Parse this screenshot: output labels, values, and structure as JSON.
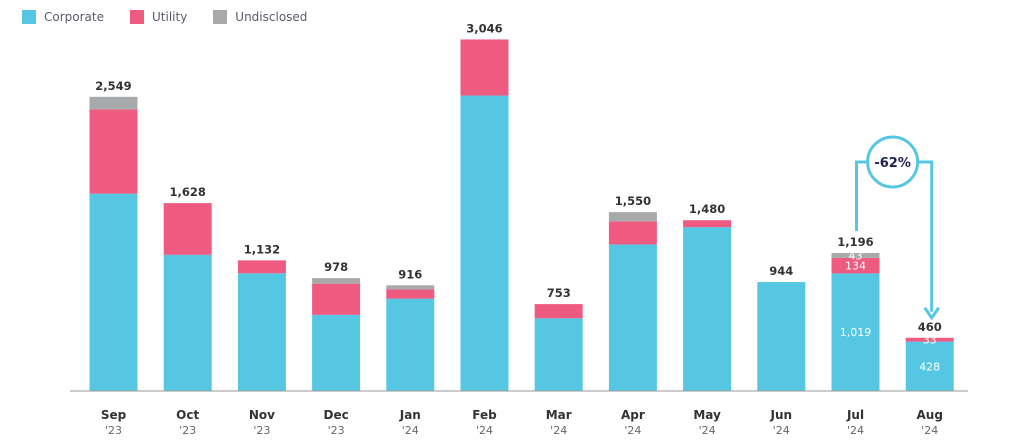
{
  "chart_data": {
    "type": "bar",
    "stacked": true,
    "categories": [
      {
        "month": "Sep",
        "year": "'23"
      },
      {
        "month": "Oct",
        "year": "'23"
      },
      {
        "month": "Nov",
        "year": "'23"
      },
      {
        "month": "Dec",
        "year": "'23"
      },
      {
        "month": "Jan",
        "year": "'24"
      },
      {
        "month": "Feb",
        "year": "'24"
      },
      {
        "month": "Mar",
        "year": "'24"
      },
      {
        "month": "Apr",
        "year": "'24"
      },
      {
        "month": "May",
        "year": "'24"
      },
      {
        "month": "Jun",
        "year": "'24"
      },
      {
        "month": "Jul",
        "year": "'24"
      },
      {
        "month": "Aug",
        "year": "'24"
      }
    ],
    "series": [
      {
        "name": "Corporate",
        "color": "#56c7e3",
        "values": [
          1710,
          1180,
          1020,
          660,
          800,
          2560,
          630,
          1270,
          1420,
          944,
          1019,
          428
        ]
      },
      {
        "name": "Utility",
        "color": "#ee5a80",
        "values": [
          730,
          448,
          112,
          270,
          80,
          486,
          123,
          200,
          60,
          0,
          134,
          33
        ]
      },
      {
        "name": "Undisclosed",
        "color": "#a8a9ab",
        "values": [
          109,
          0,
          0,
          48,
          36,
          0,
          0,
          80,
          0,
          0,
          43,
          0
        ]
      }
    ],
    "totals": [
      "2,549",
      "1,628",
      "1,132",
      "978",
      "916",
      "3,046",
      "753",
      "1,550",
      "1,480",
      "944",
      "1,196",
      "460"
    ],
    "segment_labels": [
      {
        "category_index": 10,
        "series_index": 0,
        "text": "1,019"
      },
      {
        "category_index": 10,
        "series_index": 1,
        "text": "134"
      },
      {
        "category_index": 10,
        "series_index": 2,
        "text": "43"
      },
      {
        "category_index": 11,
        "series_index": 0,
        "text": "428"
      },
      {
        "category_index": 11,
        "series_index": 1,
        "text": "33"
      }
    ],
    "annotation": {
      "text": "-62%",
      "from_category_index": 10,
      "to_category_index": 11,
      "color": "#56c7e3"
    },
    "ylim": [
      0,
      3050
    ],
    "legend_position": "top-left",
    "grid": false,
    "xlabel": "",
    "ylabel": ""
  }
}
